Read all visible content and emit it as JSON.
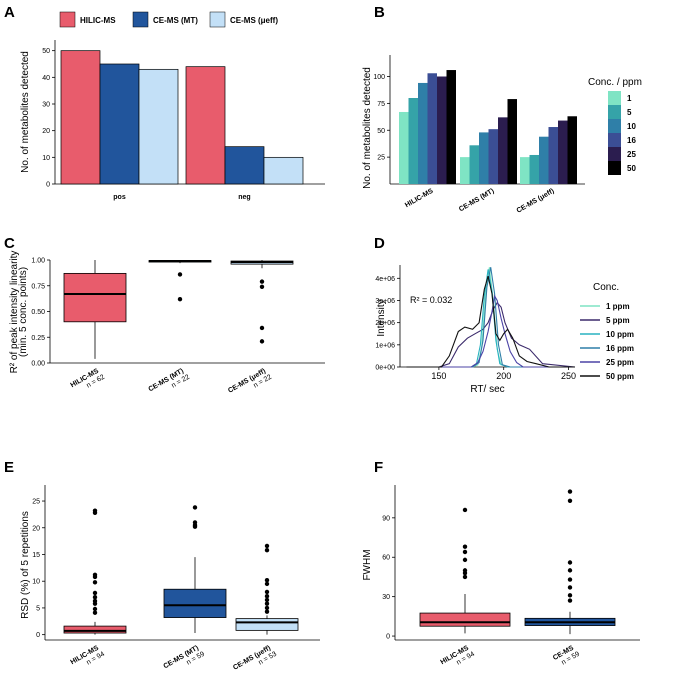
{
  "chart_data": [
    {
      "panel": "A",
      "type": "bar",
      "categories": [
        "pos",
        "neg"
      ],
      "series": [
        {
          "name": "HILIC-MS",
          "color": "#e85c6c",
          "values": [
            50,
            44
          ]
        },
        {
          "name": "CE-MS (MT)",
          "color": "#21559c",
          "values": [
            45,
            14
          ]
        },
        {
          "name": "CE-MS (μeff)",
          "color": "#c3e0f7",
          "values": [
            43,
            10
          ]
        }
      ],
      "ylabel": "No. of metabolites detected",
      "yticks": [
        0,
        10,
        20,
        30,
        40,
        50
      ],
      "ylim": [
        0,
        54
      ]
    },
    {
      "panel": "B",
      "type": "bar",
      "categories": [
        "HILIC-MS",
        "CE-MS (MT)",
        "CE-MS (μeff)"
      ],
      "series": [
        {
          "name": "1",
          "color": "#7fe4c4",
          "values": [
            67,
            25,
            25
          ]
        },
        {
          "name": "5",
          "color": "#35a3a8",
          "values": [
            80,
            36,
            27
          ]
        },
        {
          "name": "10",
          "color": "#2f7fa8",
          "values": [
            94,
            48,
            44
          ]
        },
        {
          "name": "16",
          "color": "#3b4e95",
          "values": [
            103,
            51,
            53
          ]
        },
        {
          "name": "25",
          "color": "#2b1d4f",
          "values": [
            100,
            62,
            59
          ]
        },
        {
          "name": "50",
          "color": "#000000",
          "values": [
            106,
            79,
            63
          ]
        }
      ],
      "legend_title": "Conc. / ppm",
      "ylabel": "No. of metabolites detected",
      "yticks": [
        25,
        50,
        75,
        100
      ],
      "ylim": [
        0,
        120
      ]
    },
    {
      "panel": "C",
      "type": "box",
      "categories": [
        "HILIC-MS",
        "CE-MS (MT)",
        "CE-MS (μeff)"
      ],
      "n_labels": [
        "n = 62",
        "n = 22",
        "n = 22"
      ],
      "colors": [
        "#e85c6c",
        "#21559c",
        "#c3e0f7"
      ],
      "boxes": [
        {
          "q1": 0.4,
          "median": 0.67,
          "q3": 0.87,
          "lo": 0.04,
          "hi": 1.0,
          "outliers": []
        },
        {
          "q1": 0.98,
          "median": 0.99,
          "q3": 0.995,
          "lo": 0.97,
          "hi": 1.0,
          "outliers": [
            0.86,
            0.62
          ]
        },
        {
          "q1": 0.96,
          "median": 0.98,
          "q3": 0.99,
          "lo": 0.92,
          "hi": 1.0,
          "outliers": [
            0.79,
            0.74,
            0.34,
            0.21
          ]
        }
      ],
      "ylabel": "R² of peak intensity linearity",
      "ylabel2": "(min. 5 conc. points)",
      "yticks": [
        "0.00",
        "0.25",
        "0.50",
        "0.75",
        "1.00"
      ],
      "ylim": [
        0,
        1.0
      ]
    },
    {
      "panel": "D",
      "type": "line",
      "xlabel": "RT/ sec",
      "ylabel": "Intensity",
      "xticks": [
        150,
        200,
        250
      ],
      "yticks": [
        "0e+00",
        "1e+06",
        "2e+06",
        "3e+06",
        "4e+06"
      ],
      "xlim": [
        120,
        255
      ],
      "ylim": [
        0,
        4600000
      ],
      "annotation": "R² = 0.032",
      "legend_title": "Conc.",
      "series": [
        {
          "name": "1 ppm",
          "color": "#7fe4c4",
          "x": [
            125,
            176,
            180,
            183,
            186,
            189,
            192,
            195,
            198,
            204,
            255
          ],
          "y": [
            0,
            0,
            100000,
            900000,
            3300000,
            4500000,
            3000000,
            800000,
            100000,
            0,
            0
          ]
        },
        {
          "name": "5 ppm",
          "color": "#3b2a6b",
          "x": [
            125,
            150,
            158,
            165,
            172,
            178,
            184,
            188,
            192,
            195,
            198,
            201,
            206,
            212,
            220,
            230,
            255
          ],
          "y": [
            0,
            0,
            150000,
            900000,
            1300000,
            1500000,
            1700000,
            2000000,
            2600000,
            2900000,
            2700000,
            2000000,
            1300000,
            1000000,
            800000,
            150000,
            0
          ]
        },
        {
          "name": "10 ppm",
          "color": "#29b2c0",
          "x": [
            125,
            175,
            179,
            182,
            185,
            188,
            191,
            194,
            197,
            203,
            255
          ],
          "y": [
            0,
            0,
            150000,
            1000000,
            3200000,
            4400000,
            3400000,
            1200000,
            150000,
            0,
            0
          ]
        },
        {
          "name": "16 ppm",
          "color": "#2f7fa8",
          "x": [
            125,
            176,
            181,
            184,
            187,
            190,
            193,
            196,
            199,
            205,
            255
          ],
          "y": [
            0,
            0,
            200000,
            1200000,
            3600000,
            4500000,
            3300000,
            1000000,
            100000,
            0,
            0
          ]
        },
        {
          "name": "25 ppm",
          "color": "#4b43a6",
          "x": [
            125,
            175,
            180,
            184,
            188,
            191,
            193,
            195,
            198,
            201,
            205,
            210,
            215,
            255
          ],
          "y": [
            0,
            0,
            200000,
            700000,
            1600000,
            2500000,
            3200000,
            3000000,
            2200000,
            1500000,
            700000,
            200000,
            0,
            0
          ]
        },
        {
          "name": "50 ppm",
          "color": "#111111",
          "x": [
            125,
            152,
            158,
            165,
            170,
            176,
            181,
            185,
            188,
            191,
            194,
            197,
            200,
            203,
            207,
            212,
            218,
            225,
            235,
            255
          ],
          "y": [
            0,
            0,
            500000,
            1600000,
            1800000,
            1700000,
            2000000,
            3500000,
            4100000,
            3300000,
            1500000,
            1200000,
            1500000,
            1700000,
            1300000,
            500000,
            250000,
            150000,
            0,
            0
          ]
        }
      ]
    },
    {
      "panel": "E",
      "type": "box",
      "categories": [
        "HILIC-MS",
        "CE-MS (MT)",
        "CE-MS (μeff)"
      ],
      "n_labels": [
        "n = 94",
        "n = 59",
        "n = 53"
      ],
      "colors": [
        "#e85c6c",
        "#21559c",
        "#c3e0f7"
      ],
      "boxes": [
        {
          "q1": 0.3,
          "median": 0.7,
          "q3": 1.6,
          "lo": 0.0,
          "hi": 2.4,
          "outliers": [
            23.2,
            22.8,
            11.2,
            10.8,
            9.8,
            7.8,
            7.0,
            6.3,
            5.8,
            4.8,
            4.1
          ]
        },
        {
          "q1": 3.2,
          "median": 5.5,
          "q3": 8.5,
          "lo": 0.3,
          "hi": 14.5,
          "outliers": [
            23.8,
            21.0,
            20.5,
            20.2
          ]
        },
        {
          "q1": 0.8,
          "median": 2.3,
          "q3": 3.0,
          "lo": 0.0,
          "hi": 3.6,
          "outliers": [
            16.6,
            15.8,
            10.2,
            9.5,
            8.0,
            7.2,
            6.5,
            5.8,
            5.0,
            4.3
          ]
        }
      ],
      "ylabel": "RSD (%) of 5 repetitions",
      "yticks": [
        0,
        5,
        10,
        15,
        20,
        25
      ],
      "ylim": [
        -1,
        28
      ]
    },
    {
      "panel": "F",
      "type": "box",
      "categories": [
        "HILIC-MS",
        "CE-MS"
      ],
      "n_labels": [
        "n = 94",
        "n = 59"
      ],
      "colors": [
        "#e85c6c",
        "#21559c"
      ],
      "boxes": [
        {
          "q1": 7.5,
          "median": 10.5,
          "q3": 17.5,
          "lo": 2.0,
          "hi": 32.0,
          "outliers": [
            96,
            68,
            64,
            58,
            50,
            48,
            45
          ]
        },
        {
          "q1": 8.0,
          "median": 10.5,
          "q3": 13.5,
          "lo": 1.5,
          "hi": 18.5,
          "outliers": [
            110,
            103,
            56,
            50,
            43,
            37,
            31,
            27
          ]
        }
      ],
      "ylabel": "FWHM",
      "yticks": [
        0,
        30,
        60,
        90
      ],
      "ylim": [
        -3,
        115
      ]
    }
  ]
}
